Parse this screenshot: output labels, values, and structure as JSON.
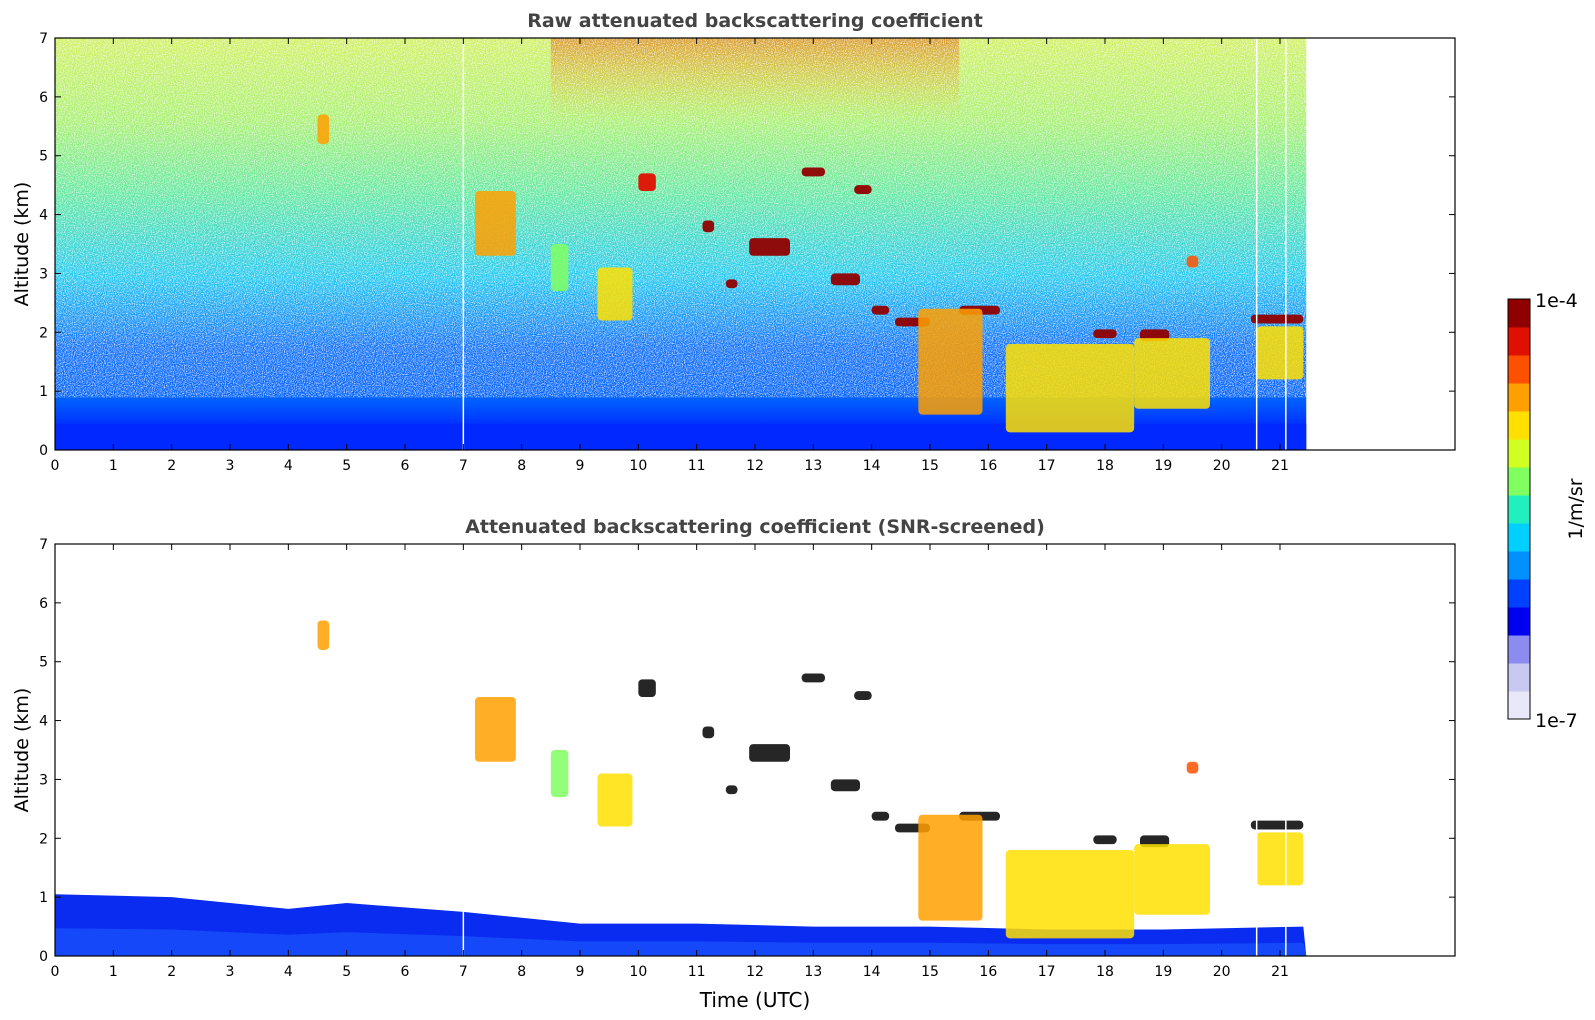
{
  "chart_data": [
    {
      "type": "heatmap",
      "title": "Raw attenuated backscattering coefficient",
      "xlabel": "",
      "ylabel": "Altitude (km)",
      "xlim": [
        0,
        24
      ],
      "ylim": [
        0,
        7
      ],
      "xticks": [
        "0",
        "1",
        "2",
        "3",
        "4",
        "5",
        "6",
        "7",
        "8",
        "9",
        "10",
        "11",
        "12",
        "13",
        "14",
        "15",
        "16",
        "17",
        "18",
        "19",
        "20",
        "21"
      ],
      "yticks": [
        "0",
        "1",
        "2",
        "3",
        "4",
        "5",
        "6",
        "7"
      ],
      "data_end_time": 21.45,
      "background_noise": {
        "near_surface_km": 0.45,
        "description_levels": [
          0.0,
          0.25
        ]
      },
      "features": [
        {
          "t0": 4.5,
          "t1": 4.7,
          "z0": 5.2,
          "z1": 5.7,
          "level": 0.82
        },
        {
          "t0": 7.2,
          "t1": 7.9,
          "z0": 3.3,
          "z1": 4.4,
          "level": 0.78
        },
        {
          "t0": 8.5,
          "t1": 8.8,
          "z0": 2.7,
          "z1": 3.5,
          "level": 0.55
        },
        {
          "t0": 9.3,
          "t1": 9.9,
          "z0": 2.2,
          "z1": 3.1,
          "level": 0.7
        },
        {
          "t0": 10.0,
          "t1": 10.3,
          "z0": 4.4,
          "z1": 4.7,
          "level": 0.95
        },
        {
          "t0": 11.1,
          "t1": 11.3,
          "z0": 3.7,
          "z1": 3.9,
          "level": 0.97
        },
        {
          "t0": 11.5,
          "t1": 11.7,
          "z0": 2.75,
          "z1": 2.9,
          "level": 0.97
        },
        {
          "t0": 11.9,
          "t1": 12.6,
          "z0": 3.3,
          "z1": 3.6,
          "level": 0.97
        },
        {
          "t0": 12.8,
          "t1": 13.2,
          "z0": 4.65,
          "z1": 4.8,
          "level": 0.97
        },
        {
          "t0": 13.3,
          "t1": 13.8,
          "z0": 2.8,
          "z1": 3.0,
          "level": 0.97
        },
        {
          "t0": 13.7,
          "t1": 14.0,
          "z0": 4.35,
          "z1": 4.5,
          "level": 0.97
        },
        {
          "t0": 14.0,
          "t1": 14.3,
          "z0": 2.3,
          "z1": 2.45,
          "level": 0.97
        },
        {
          "t0": 14.4,
          "t1": 15.0,
          "z0": 2.1,
          "z1": 2.25,
          "level": 0.97
        },
        {
          "t0": 15.5,
          "t1": 16.2,
          "z0": 2.3,
          "z1": 2.45,
          "level": 0.97
        },
        {
          "t0": 14.8,
          "t1": 15.9,
          "z0": 0.6,
          "z1": 2.4,
          "level": 0.8
        },
        {
          "t0": 16.3,
          "t1": 18.5,
          "z0": 0.3,
          "z1": 1.8,
          "level": 0.72
        },
        {
          "t0": 17.8,
          "t1": 18.2,
          "z0": 1.9,
          "z1": 2.05,
          "level": 0.97
        },
        {
          "t0": 18.6,
          "t1": 19.1,
          "z0": 1.85,
          "z1": 2.05,
          "level": 0.97
        },
        {
          "t0": 18.5,
          "t1": 19.8,
          "z0": 0.7,
          "z1": 1.9,
          "level": 0.7
        },
        {
          "t0": 19.4,
          "t1": 19.6,
          "z0": 3.1,
          "z1": 3.3,
          "level": 0.85
        },
        {
          "t0": 20.5,
          "t1": 21.4,
          "z0": 2.15,
          "z1": 2.3,
          "level": 0.97
        },
        {
          "t0": 20.6,
          "t1": 21.4,
          "z0": 1.2,
          "z1": 2.1,
          "level": 0.72
        }
      ]
    },
    {
      "type": "heatmap",
      "title": "Attenuated backscattering coefficient (SNR-screened)",
      "xlabel": "Time (UTC)",
      "ylabel": "Altitude (km)",
      "xlim": [
        0,
        24
      ],
      "ylim": [
        0,
        7
      ],
      "xticks": [
        "0",
        "1",
        "2",
        "3",
        "4",
        "5",
        "6",
        "7",
        "8",
        "9",
        "10",
        "11",
        "12",
        "13",
        "14",
        "15",
        "16",
        "17",
        "18",
        "19",
        "20",
        "21"
      ],
      "yticks": [
        "0",
        "1",
        "2",
        "3",
        "4",
        "5",
        "6",
        "7"
      ],
      "data_end_time": 21.45,
      "boundary_layer_top_km": [
        [
          0,
          1.05
        ],
        [
          2,
          1.0
        ],
        [
          4,
          0.8
        ],
        [
          5,
          0.9
        ],
        [
          7,
          0.75
        ],
        [
          9,
          0.55
        ],
        [
          11,
          0.55
        ],
        [
          13,
          0.5
        ],
        [
          15,
          0.5
        ],
        [
          17,
          0.45
        ],
        [
          19,
          0.45
        ],
        [
          21.4,
          0.5
        ]
      ]
    }
  ],
  "colorbar": {
    "label": "1/m/sr",
    "max_label": "1e-4",
    "min_label": "1e-7",
    "colors": [
      "#e8e8f8",
      "#c8c8f0",
      "#8c8cf0",
      "#0000f0",
      "#0040ff",
      "#0090ff",
      "#00d0ff",
      "#20f0c0",
      "#80ff60",
      "#d0ff20",
      "#ffe000",
      "#ffa000",
      "#ff5000",
      "#e01000",
      "#900000"
    ]
  }
}
